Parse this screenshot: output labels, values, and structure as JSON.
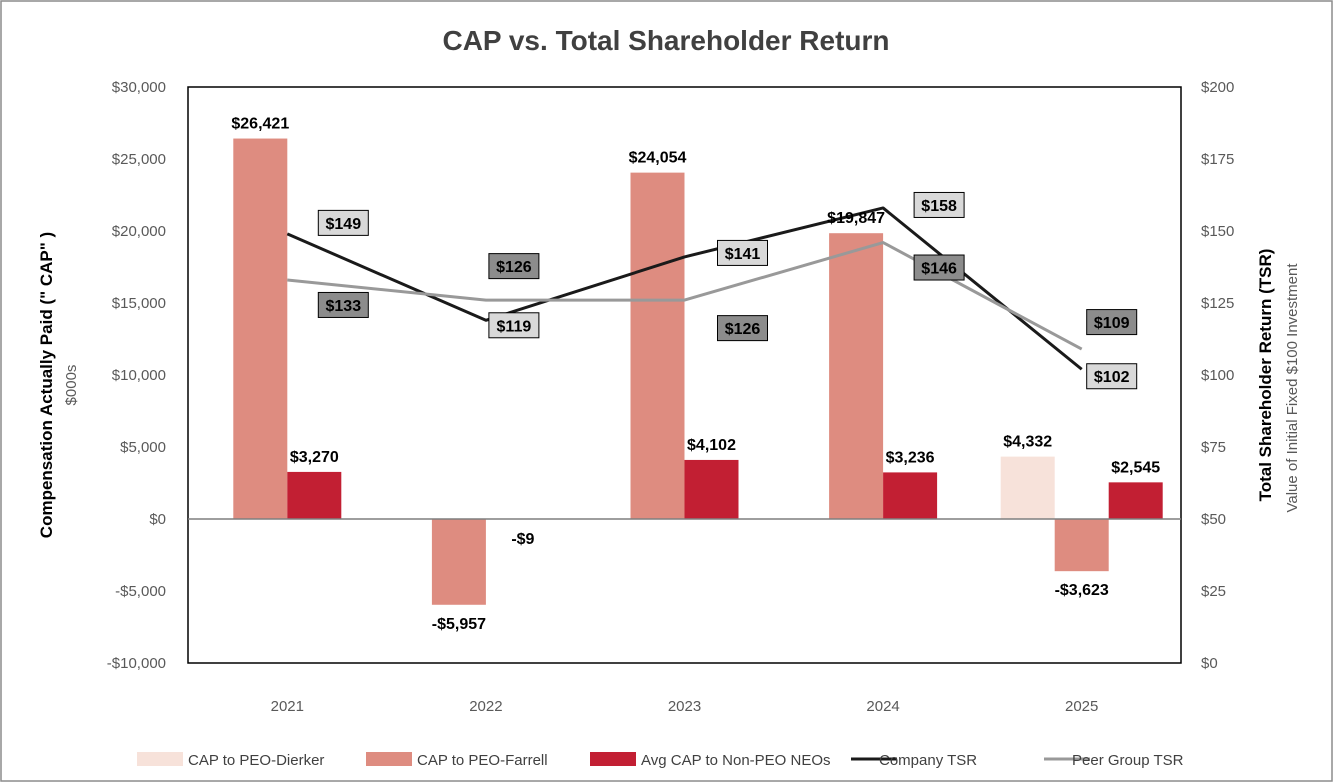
{
  "chart_data": {
    "type": "bar",
    "title": "CAP vs. Total Shareholder Return",
    "categories": [
      "2021",
      "2022",
      "2023",
      "2024",
      "2025"
    ],
    "y_left": {
      "title": "Compensation Actually Paid (\" CAP\" )",
      "subtitle": "$000s",
      "range": [
        -10000,
        30000
      ],
      "ticks": [
        -10000,
        -5000,
        0,
        5000,
        10000,
        15000,
        20000,
        25000,
        30000
      ],
      "tick_labels": [
        "-$10,000",
        "-$5,000",
        "$0",
        "$5,000",
        "$10,000",
        "$15,000",
        "$20,000",
        "$25,000",
        "$30,000"
      ]
    },
    "y_right": {
      "title": "Total Shareholder Return (TSR)",
      "subtitle": "Value of Initial Fixed $100 Investment",
      "range": [
        0,
        200
      ],
      "ticks": [
        0,
        25,
        50,
        75,
        100,
        125,
        150,
        175,
        200
      ],
      "tick_labels": [
        "$0",
        "$25",
        "$50",
        "$75",
        "$100",
        "$125",
        "$150",
        "$175",
        "$200"
      ]
    },
    "bar_series": [
      {
        "name": "CAP to PEO-Dierker",
        "color": "#f7e2da",
        "values": [
          null,
          null,
          null,
          null,
          4332
        ],
        "labels": [
          "",
          "",
          "",
          "",
          "$4,332"
        ]
      },
      {
        "name": "CAP to PEO-Farrell",
        "color": "#de8c80",
        "values": [
          26421,
          -5957,
          24054,
          19847,
          -3623
        ],
        "labels": [
          "$26,421",
          "-$5,957",
          "$24,054",
          "$19,847",
          "-$3,623"
        ]
      },
      {
        "name": "Avg CAP to Non-PEO NEOs",
        "color": "#c21f33",
        "values": [
          3270,
          -9,
          4102,
          3236,
          2545
        ],
        "labels": [
          "$3,270",
          "-$9",
          "$4,102",
          "$3,236",
          "$2,545"
        ]
      }
    ],
    "line_series": [
      {
        "name": "Company TSR",
        "color": "#1a1a1a",
        "values": [
          149,
          119,
          141,
          158,
          102
        ],
        "labels": [
          "$149",
          "$119",
          "$141",
          "$158",
          "$102"
        ],
        "label_bg": "#d9d9d9"
      },
      {
        "name": "Peer Group TSR",
        "color": "#999999",
        "values": [
          133,
          126,
          126,
          146,
          109
        ],
        "labels": [
          "$133",
          "$126",
          "$126",
          "$146",
          "$109"
        ],
        "label_bg": "#8c8c8c"
      }
    ],
    "legend_position": "bottom",
    "grid": false
  }
}
